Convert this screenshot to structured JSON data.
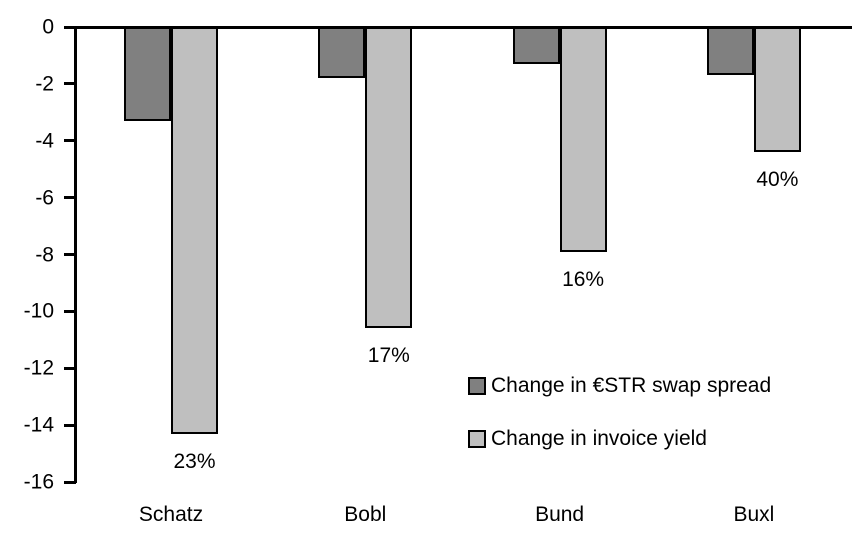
{
  "chart_data": {
    "type": "bar",
    "title": "",
    "xlabel": "",
    "ylabel": "",
    "categories": [
      "Schatz",
      "Bobl",
      "Bund",
      "Buxl"
    ],
    "series": [
      {
        "name": "Change in €STR swap spread",
        "color": "#808080",
        "values": [
          -3.3,
          -1.8,
          -1.3,
          -1.7
        ]
      },
      {
        "name": "Change in invoice yield",
        "color": "#BFBFBF",
        "values": [
          -14.3,
          -10.6,
          -7.9,
          -4.4
        ],
        "data_labels": [
          "23%",
          "17%",
          "16%",
          "40%"
        ]
      }
    ],
    "ylim": [
      -16,
      0
    ],
    "yticks": [
      0,
      -2,
      -4,
      -6,
      -8,
      -10,
      -12,
      -14,
      -16
    ],
    "grid": false,
    "legend_position": "inside-right",
    "background_color": "#FFFFFF",
    "axis_color": "#000000"
  }
}
